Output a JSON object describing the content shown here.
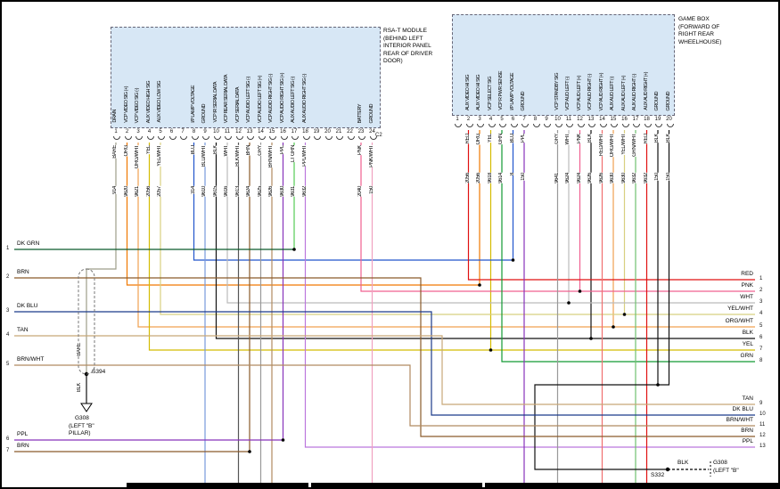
{
  "left_module": {
    "title_lines": [
      "RSA-T MODULE",
      "(BEHIND LEFT",
      "INTERIOR PANEL",
      "REAR OF DRIVER",
      "DOOR)"
    ],
    "connector_label": "C2",
    "pins": [
      {
        "n": 1,
        "signal": "DRAIN",
        "color": "BARE",
        "circuit": "914"
      },
      {
        "n": 2,
        "signal": "VCP VIDEO SIG (+)",
        "color": "ORG",
        "circuit": "9620"
      },
      {
        "n": 3,
        "signal": "VCP VIDEO SIG (-)",
        "color": "ORG/WHT",
        "circuit": "9621"
      },
      {
        "n": 4,
        "signal": "AUX VIDEO HIGH SIG",
        "color": "YEL",
        "circuit": "2056"
      },
      {
        "n": 5,
        "signal": "AUX VIDEO LOW SIG",
        "color": "YEL/WHT",
        "circuit": "2057"
      },
      {
        "n": 6,
        "signal": "",
        "color": "",
        "circuit": ""
      },
      {
        "n": 7,
        "signal": "",
        "color": "",
        "circuit": ""
      },
      {
        "n": 8,
        "signal": "I/P LAMP VOLTAGE",
        "color": "BLU",
        "circuit": "314"
      },
      {
        "n": 9,
        "signal": "GROUND",
        "color": "BLU/WHT",
        "circuit": "9610"
      },
      {
        "n": 10,
        "signal": "VCP IR SERIAL DATA",
        "color": "BLK",
        "circuit": "9615"
      },
      {
        "n": 11,
        "signal": "VCP REAR SERIAL DATA",
        "color": "WHT",
        "circuit": "9616"
      },
      {
        "n": 12,
        "signal": "VCP SERIAL DATA",
        "color": "BLK/WHT",
        "circuit": "9613"
      },
      {
        "n": 13,
        "signal": "VCP AUDIO LEFT SIG (-)",
        "color": "BRN",
        "circuit": "9624"
      },
      {
        "n": 14,
        "signal": "VCP AUDIO LEFT SIG (+)",
        "color": "GRY",
        "circuit": "9625"
      },
      {
        "n": 15,
        "signal": "VCP AUDIO RIGHT SIG (-)",
        "color": "BRN/WHT",
        "circuit": "9626"
      },
      {
        "n": 16,
        "signal": "VCP AUDIO RIGHT SIG (+)",
        "color": "PPL",
        "circuit": "9630"
      },
      {
        "n": 17,
        "signal": "AUX AUDIO LEFT SIG (-)",
        "color": "LT GRN",
        "circuit": "9631"
      },
      {
        "n": 18,
        "signal": "AUX AUDIO RIGHT SIG (-)",
        "color": "PPL/WHT",
        "circuit": "9632"
      },
      {
        "n": 19,
        "signal": "",
        "color": "",
        "circuit": ""
      },
      {
        "n": 20,
        "signal": "",
        "color": "",
        "circuit": ""
      },
      {
        "n": 21,
        "signal": "",
        "color": "",
        "circuit": ""
      },
      {
        "n": 22,
        "signal": "",
        "color": "",
        "circuit": ""
      },
      {
        "n": 23,
        "signal": "BATTERY",
        "color": "PNK",
        "circuit": "2040"
      },
      {
        "n": 24,
        "signal": "GROUND",
        "color": "PNK/WHT",
        "circuit": "150"
      }
    ]
  },
  "right_module": {
    "title_lines": [
      "GAME BOX",
      "(FORWARD OF",
      "RIGHT REAR",
      "WHEELHOUSE)"
    ],
    "pins": [
      {
        "n": 1,
        "signal": "",
        "color": "",
        "circuit": ""
      },
      {
        "n": 2,
        "signal": "AUX VIDEO HI SIG",
        "color": "RED",
        "circuit": "2056"
      },
      {
        "n": 3,
        "signal": "AUX VIDEO HI SIG",
        "color": "ORG",
        "circuit": "2056"
      },
      {
        "n": 4,
        "signal": "VCP SELECT SIG",
        "color": "YEL",
        "circuit": "9618"
      },
      {
        "n": 5,
        "signal": "VCP R PWR SENSE",
        "color": "GRN",
        "circuit": "9614"
      },
      {
        "n": 6,
        "signal": "I/P LAMP VOLTAGE",
        "color": "BLU",
        "circuit": "8"
      },
      {
        "n": 7,
        "signal": "GROUND",
        "color": "PPL",
        "circuit": "150"
      },
      {
        "n": 8,
        "signal": "",
        "color": "",
        "circuit": ""
      },
      {
        "n": 9,
        "signal": "",
        "color": "",
        "circuit": ""
      },
      {
        "n": 10,
        "signal": "VCP STANDBY SIG",
        "color": "GRY",
        "circuit": "9641"
      },
      {
        "n": 11,
        "signal": "VCP AUD LEFT (-)",
        "color": "WHT",
        "circuit": "9624"
      },
      {
        "n": 12,
        "signal": "VCP AUD LEFT (+)",
        "color": "PNK",
        "circuit": "9624"
      },
      {
        "n": 13,
        "signal": "VCP AUD RIGHT (-)",
        "color": "BLK",
        "circuit": "9626"
      },
      {
        "n": 14,
        "signal": "VCP AUD RIGHT (+)",
        "color": "RED/WHT",
        "circuit": "9626"
      },
      {
        "n": 15,
        "signal": "AUX AUD LEFT (-)",
        "color": "ORG/WHT",
        "circuit": "9630"
      },
      {
        "n": 16,
        "signal": "AUX AUD LEFT (+)",
        "color": "YEL/WHT",
        "circuit": "9630"
      },
      {
        "n": 17,
        "signal": "AUX AUD RIGHT (-)",
        "color": "GRN/WHT",
        "circuit": "9632"
      },
      {
        "n": 18,
        "signal": "AUX AUD RIGHT (+)",
        "color": "RED",
        "circuit": "9632"
      },
      {
        "n": 19,
        "signal": "GROUND",
        "color": "BLK",
        "circuit": "150"
      },
      {
        "n": 20,
        "signal": "GROUND",
        "color": "BLK",
        "circuit": "150"
      }
    ]
  },
  "left_edge_wires": [
    {
      "n": "1",
      "label": "DK GRN"
    },
    {
      "n": "2",
      "label": "BRN"
    },
    {
      "n": "3",
      "label": "DK BLU"
    },
    {
      "n": "4",
      "label": "TAN"
    },
    {
      "n": "5",
      "label": "BRN/WHT"
    },
    {
      "n": "6",
      "label": "PPL"
    },
    {
      "n": "7",
      "label": "BRN"
    }
  ],
  "right_edge_wires": [
    {
      "n": "1",
      "label": "RED"
    },
    {
      "n": "2",
      "label": "PNK"
    },
    {
      "n": "3",
      "label": "WHT"
    },
    {
      "n": "4",
      "label": "YEL/WHT"
    },
    {
      "n": "5",
      "label": "ORG/WHT"
    },
    {
      "n": "6",
      "label": "BLK"
    },
    {
      "n": "7",
      "label": "YEL"
    },
    {
      "n": "8",
      "label": "GRN"
    },
    {
      "n": "9",
      "label": "TAN"
    },
    {
      "n": "10",
      "label": "DK BLU"
    },
    {
      "n": "11",
      "label": "BRN/WHT"
    },
    {
      "n": "12",
      "label": "BRN"
    },
    {
      "n": "13",
      "label": "PPL"
    }
  ],
  "grounds": {
    "left": {
      "upper_wire": "BARE",
      "splice": "S394",
      "lower_wire": "BLK",
      "ground_lines": [
        "G308",
        "(LEFT \"B\"",
        "PILLAR)"
      ]
    },
    "bottom_right": {
      "wire": "BLK",
      "splice": "S332",
      "ground_lines": [
        "G308",
        "(LEFT \"B\""
      ]
    }
  },
  "palette": {
    "BARE": "#9e9e8a",
    "ORG": "#f07800",
    "ORG/WHT": "#f0a050",
    "YEL": "#d4bc00",
    "YEL/WHT": "#d8d080",
    "BLU": "#2255cc",
    "BLU/WHT": "#7799dd",
    "BLK": "#111111",
    "WHT": "#bbbbbb",
    "BLK/WHT": "#555555",
    "BRN": "#8a5a2a",
    "GRY": "#999999",
    "BRN/WHT": "#b08a60",
    "PPL": "#8833bb",
    "LT GRN": "#55cc55",
    "PPL/WHT": "#bb77dd",
    "PNK": "#f06090",
    "PNK/WHT": "#f0a0c0",
    "RED": "#e01010",
    "GRN": "#119933",
    "DK GRN": "#0a5a2a",
    "TAN": "#c8a878",
    "DK BLU": "#1a3a8a",
    "RED/WHT": "#f07070",
    "GRN/WHT": "#70c070"
  }
}
